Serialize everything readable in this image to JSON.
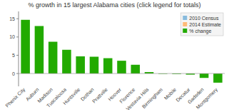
{
  "chart_data": {
    "type": "bar",
    "title": "% growth in 15 largest Alabama cities (click legend for totals)",
    "categories": [
      "Phenix City",
      "Auburn",
      "Madison",
      "Tuscaloosa",
      "Huntsville",
      "Dothan",
      "Prattville",
      "Hoover",
      "Florence",
      "Vestavia Hills",
      "Birmingham",
      "Mobile",
      "Decatur",
      "Gadsden",
      "Montgomery"
    ],
    "series": [
      {
        "name": "2010 Census",
        "color": "#88bbdd"
      },
      {
        "name": "2014 Estimate",
        "color": "#ffbb77"
      },
      {
        "name": "% change",
        "color": "#22aa00",
        "values": [
          14.7,
          13.0,
          8.7,
          6.5,
          4.7,
          4.6,
          4.2,
          3.5,
          2.4,
          0.4,
          -0.1,
          -0.15,
          -0.3,
          -1.2,
          -2.5
        ]
      }
    ],
    "ylim": [
      -3.5,
      17
    ],
    "yticks": [
      0,
      5,
      10,
      15
    ],
    "grid": false,
    "legend": "upper right"
  }
}
